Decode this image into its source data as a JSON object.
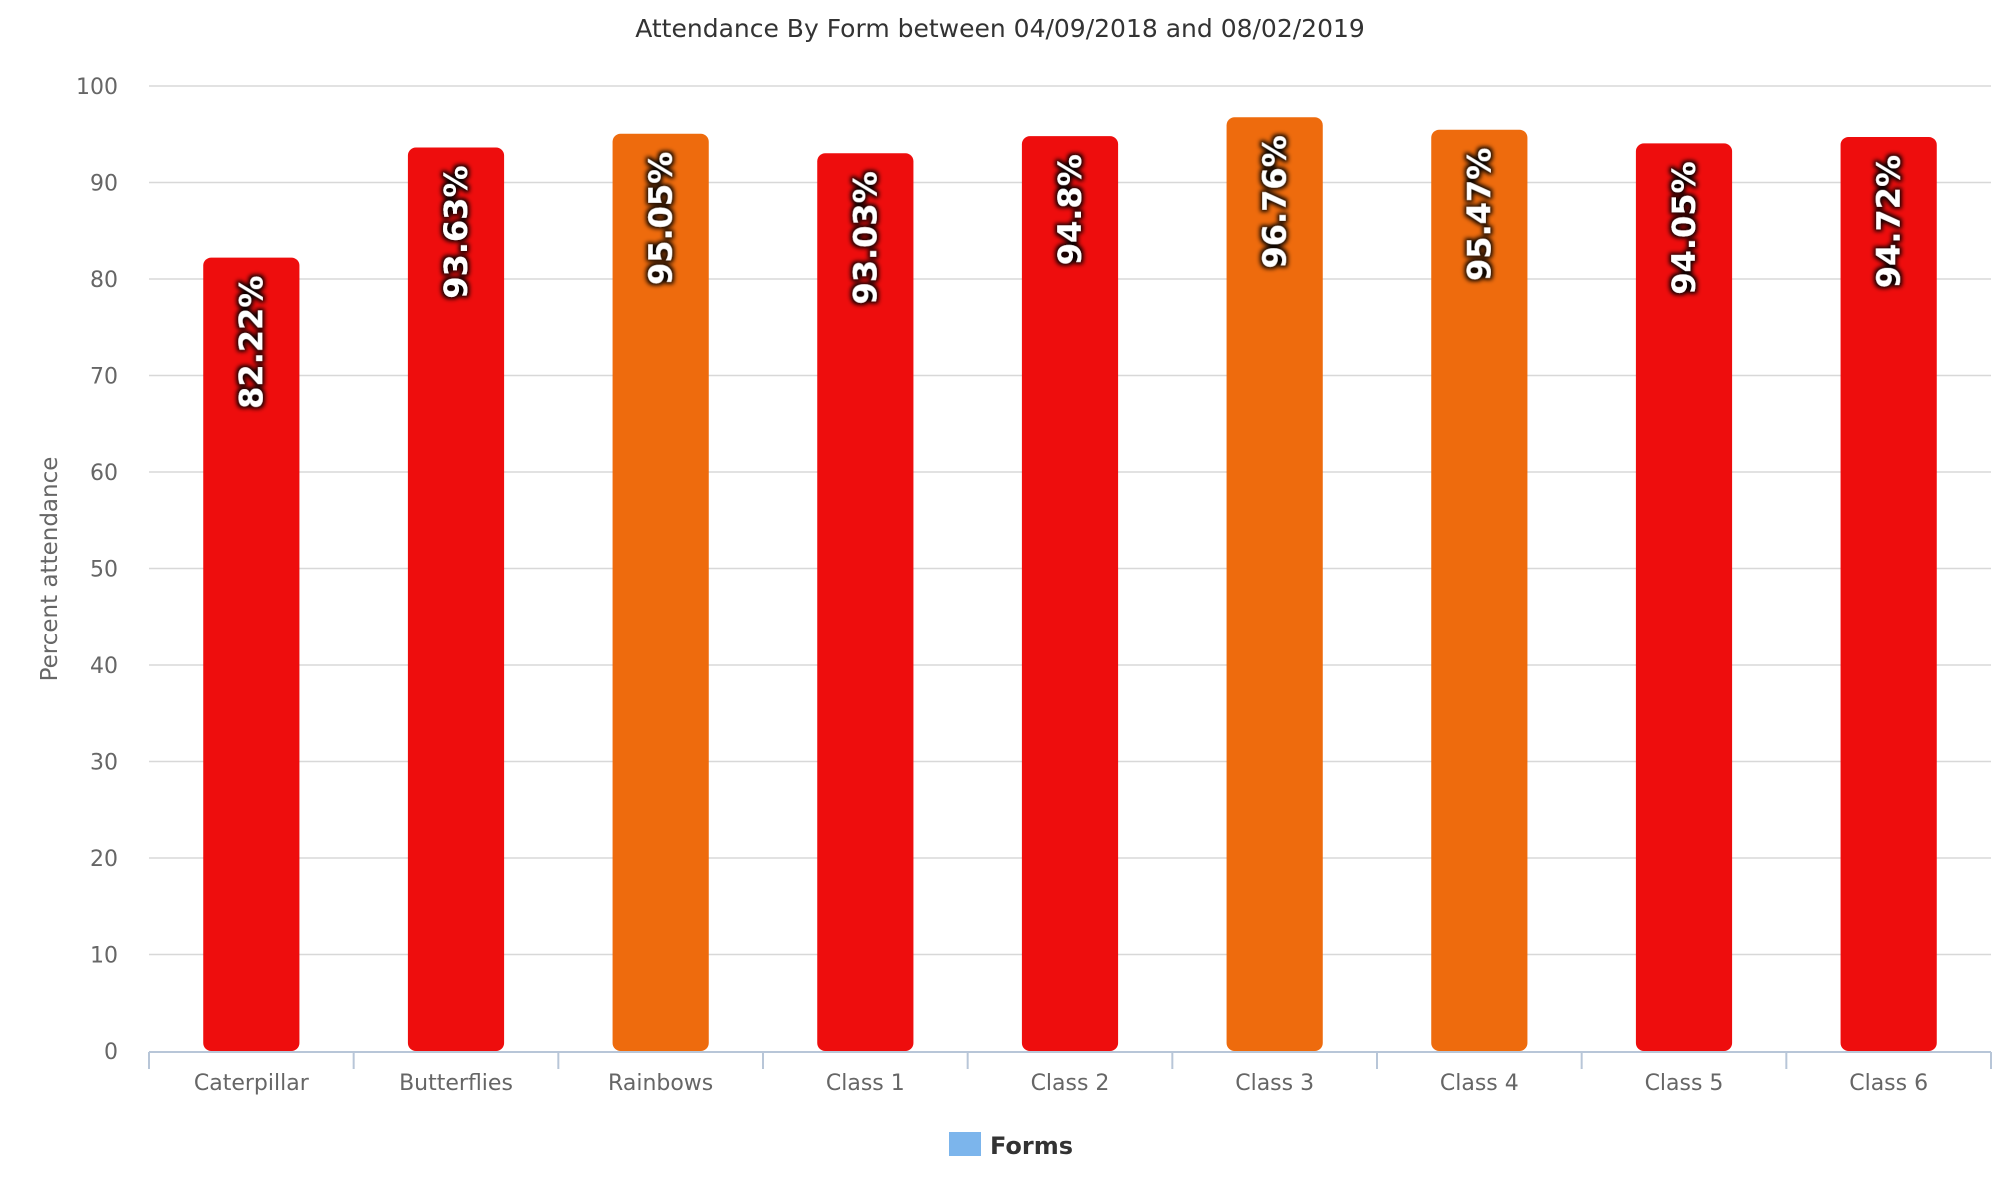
{
  "chart_data": {
    "type": "bar",
    "title": "Attendance By Form between 04/09/2018 and 08/02/2019",
    "xlabel": "",
    "ylabel": "Percent attendance",
    "ylim": [
      0,
      100
    ],
    "y_ticks": [
      0,
      10,
      20,
      30,
      40,
      50,
      60,
      70,
      80,
      90,
      100
    ],
    "grid": true,
    "legend_position": "bottom-center",
    "categories": [
      "Caterpillar",
      "Butterflies",
      "Rainbows",
      "Class 1",
      "Class 2",
      "Class 3",
      "Class 4",
      "Class 5",
      "Class 6"
    ],
    "series": [
      {
        "name": "Forms",
        "legend_color": "#7cb5ec",
        "values": [
          82.22,
          93.63,
          95.05,
          93.03,
          94.8,
          96.76,
          95.47,
          94.05,
          94.72
        ],
        "data_labels": [
          "82.22%",
          "93.63%",
          "95.05%",
          "93.03%",
          "94.8%",
          "96.76%",
          "95.47%",
          "94.05%",
          "94.72%"
        ],
        "bar_colors": [
          "#ee0d0d",
          "#ee0d0d",
          "#ee6b0d",
          "#ee0d0d",
          "#ee0d0d",
          "#ee6b0d",
          "#ee6b0d",
          "#ee0d0d",
          "#ee0d0d"
        ]
      }
    ]
  }
}
